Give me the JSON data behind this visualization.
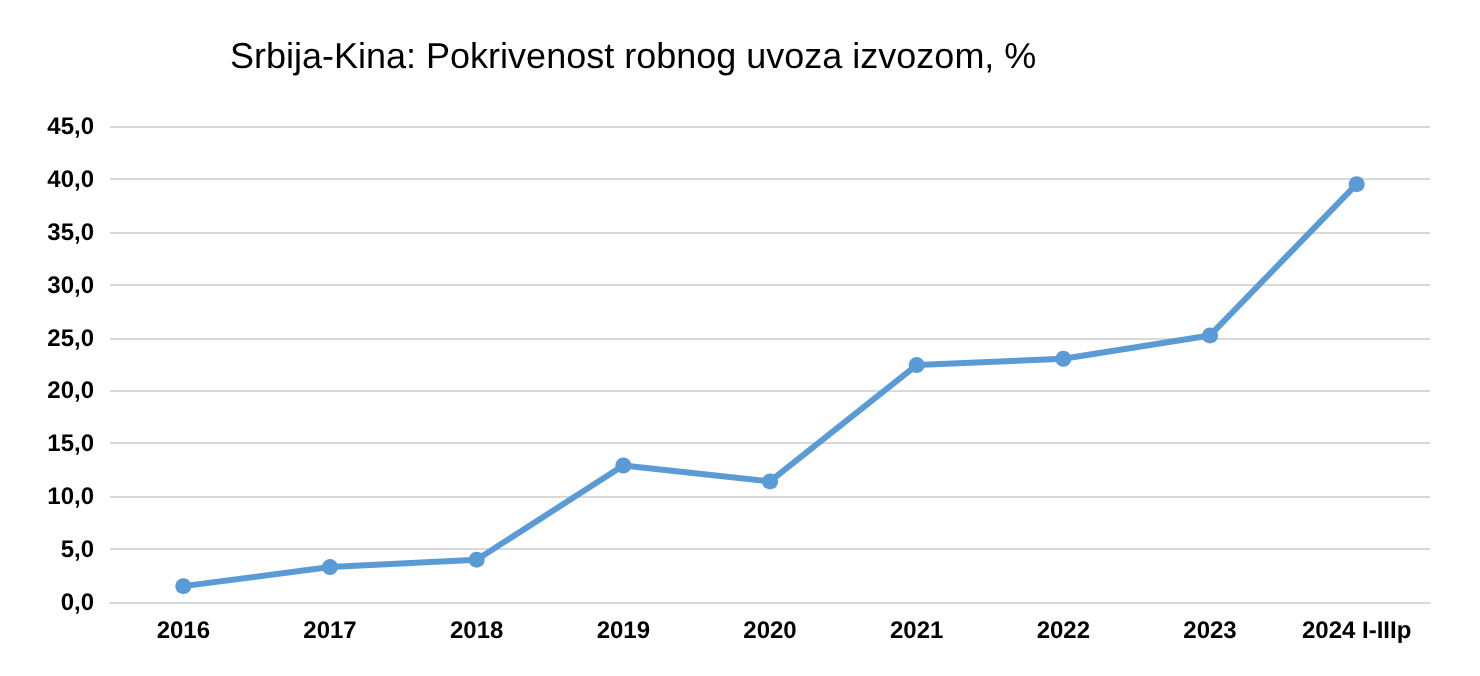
{
  "chart_data": {
    "type": "line",
    "title": "Srbija-Kina: Pokrivenost robnog uvoza izvozom, %",
    "categories": [
      "2016",
      "2017",
      "2018",
      "2019",
      "2020",
      "2021",
      "2022",
      "2023",
      "2024 I-IIIp"
    ],
    "series": [
      {
        "color": "#5b9bd5",
        "values": [
          1.5,
          3.3,
          4.0,
          12.9,
          11.4,
          22.4,
          23.0,
          25.2,
          39.5
        ]
      }
    ],
    "ylim": [
      0,
      45
    ],
    "yticks": [
      {
        "value": 0,
        "label": "0,0"
      },
      {
        "value": 5,
        "label": "5,0"
      },
      {
        "value": 10,
        "label": "10,0"
      },
      {
        "value": 15,
        "label": "15,0"
      },
      {
        "value": 20,
        "label": "20,0"
      },
      {
        "value": 25,
        "label": "25,0"
      },
      {
        "value": 30,
        "label": "30,0"
      },
      {
        "value": 35,
        "label": "35,0"
      },
      {
        "value": 40,
        "label": "40,0"
      },
      {
        "value": 45,
        "label": "45,0"
      }
    ],
    "grid": "y",
    "marker": "circle",
    "line_style": "solid"
  }
}
